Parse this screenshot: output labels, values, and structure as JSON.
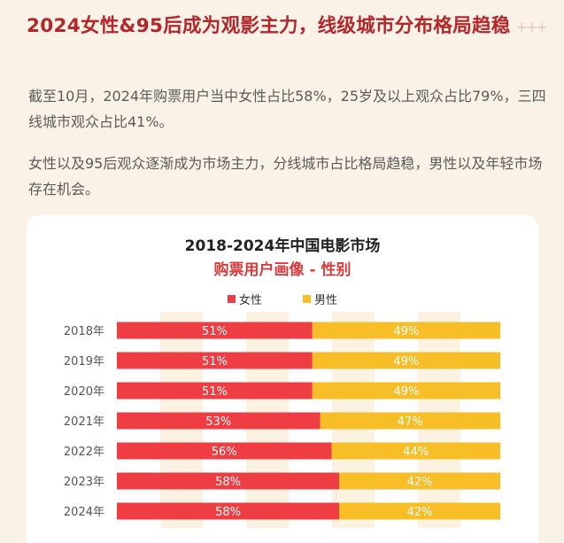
{
  "headline": "2024女性&95后成为观影主力，线级城市分布格局趋稳",
  "sparkle": "+++",
  "paragraphs": [
    "截至10月，2024年购票用户当中女性占比58%，25岁及以上观众占比79%，三四线城市观众占比41%。",
    "女性以及95后观众逐渐成为市场主力，分线城市占比格局趋稳，男性以及年轻市场存在机会。"
  ],
  "colors": {
    "female": "#ee3d43",
    "male": "#f7be28",
    "headline": "#b3262a",
    "accent_title": "#d93b3b"
  },
  "chart_data": {
    "type": "bar",
    "orientation": "horizontal",
    "stacked": true,
    "percent_stacked": true,
    "title": "2018-2024年中国电影市场",
    "subtitle": "购票用户画像 - 性别",
    "legend_position": "top-center",
    "categories": [
      "2018年",
      "2019年",
      "2020年",
      "2021年",
      "2022年",
      "2023年",
      "2024年"
    ],
    "series": [
      {
        "name": "女性",
        "color": "#ee3d43",
        "values": [
          51,
          51,
          51,
          53,
          56,
          58,
          58
        ],
        "labels": [
          "51%",
          "51%",
          "51%",
          "53%",
          "56%",
          "58%",
          "58%"
        ]
      },
      {
        "name": "男性",
        "color": "#f7be28",
        "values": [
          49,
          49,
          49,
          47,
          44,
          42,
          42
        ],
        "labels": [
          "49%",
          "49%",
          "49%",
          "47%",
          "44%",
          "42%",
          "42%"
        ]
      }
    ],
    "xlim": [
      0,
      100
    ],
    "grid": false
  }
}
